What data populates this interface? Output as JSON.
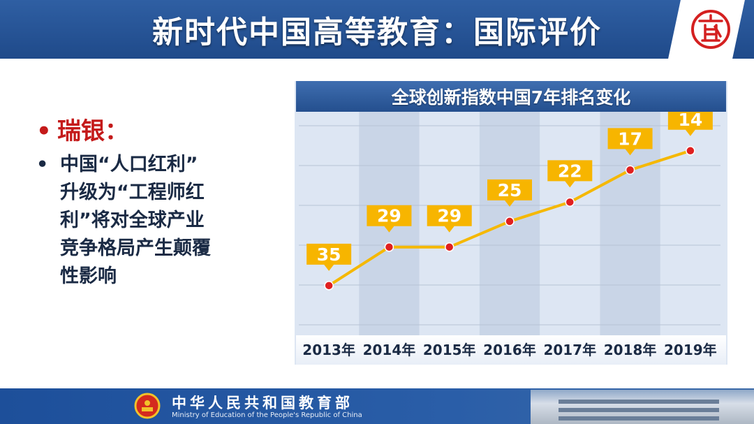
{
  "header": {
    "title": "新时代中国高等教育：国际评价",
    "logo_icon": "education-logo-icon",
    "logo_color": "#d42020"
  },
  "left": {
    "bullet_dot": "•",
    "heading": "瑞银：",
    "sub_lines": [
      "中国“人口红利”",
      "升级为“工程师红",
      "利”将对全球产业",
      "竞争格局产生颠覆",
      "性影响"
    ]
  },
  "chart_data": {
    "type": "line",
    "title": "全球创新指数中国7年排名变化",
    "categories": [
      "2013年",
      "2014年",
      "2015年",
      "2016年",
      "2017年",
      "2018年",
      "2019年"
    ],
    "values": [
      35,
      29,
      29,
      25,
      22,
      17,
      14
    ],
    "ylim": [
      38,
      12
    ],
    "line_color": "#f5b800",
    "point_color": "#e02020",
    "label_bg": "#f7b500",
    "grid": true,
    "legend": "none"
  },
  "footer": {
    "org_cn": "中华人民共和国教育部",
    "org_en": "Ministry of Education of the People's Republic of China",
    "emblem_icon": "national-emblem-icon"
  }
}
